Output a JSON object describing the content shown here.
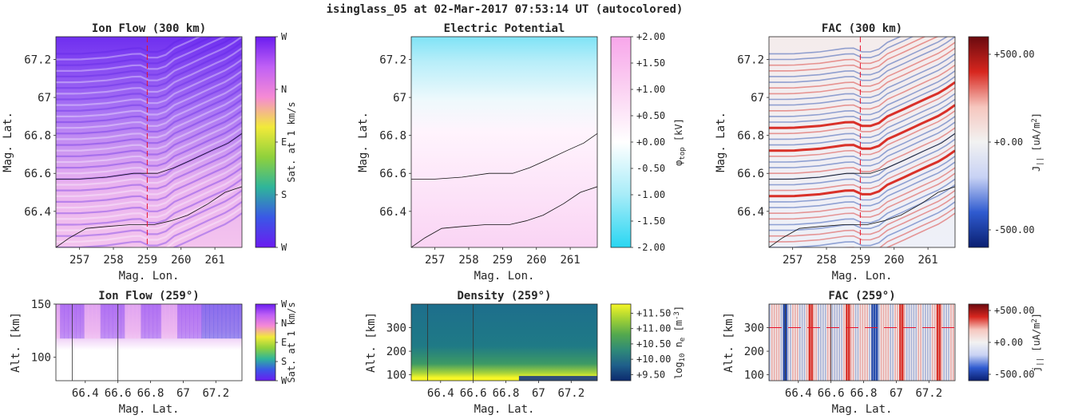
{
  "suptitle": "isinglass_05 at 02-Mar-2017 07:53:14 UT (autocolored)",
  "colors": {
    "red_marker": "#e8102a",
    "ion_low": "#7b2cf5",
    "ion_high": "#f7c0ec",
    "potential_pos": "#f9b7ee",
    "potential_neg": "#29d6f2",
    "fac_pos": "#d7261e",
    "fac_neg": "#1840a8",
    "density_low": "#0c2a6e",
    "density_high": "#f6f626"
  },
  "chart_data": [
    {
      "id": "ion-flow-300",
      "type": "heatmap",
      "title": "Ion Flow (300 km)",
      "xlabel": "Mag. Lon.",
      "ylabel": "Mag. Lat.",
      "xlim": [
        256.3,
        261.8
      ],
      "ylim": [
        66.21,
        67.32
      ],
      "xticks": [
        "257",
        "258",
        "259",
        "260",
        "261"
      ],
      "xtick_values": [
        257,
        258,
        259,
        260,
        261
      ],
      "yticks": [
        "66.4",
        "66.6",
        "66.8",
        "67",
        "67.2"
      ],
      "ytick_values": [
        66.4,
        66.6,
        66.8,
        67.0,
        67.2
      ],
      "show_xlabel": true,
      "colorbar": {
        "label": "Sat. at 1 km/s",
        "ticks": [
          "W",
          "N",
          "E",
          "S",
          "W"
        ],
        "palette": [
          "#6a1cf0",
          "#3a58e6",
          "#2fb59a",
          "#8fd13c",
          "#f2ea3a",
          "#f58ad5",
          "#c060f5",
          "#6a1cf0"
        ]
      },
      "marker_lon": 259,
      "boundary_upper": {
        "x": [
          256.3,
          257.0,
          257.8,
          258.6,
          259.3,
          259.8,
          260.3,
          260.9,
          261.4,
          261.8
        ],
        "y": [
          66.57,
          66.57,
          66.58,
          66.6,
          66.6,
          66.63,
          66.67,
          66.72,
          66.76,
          66.81
        ]
      },
      "boundary_lower": {
        "x": [
          256.3,
          256.7,
          257.2,
          257.8,
          258.5,
          259.2,
          259.7,
          260.2,
          260.8,
          261.3,
          261.8
        ],
        "y": [
          66.21,
          66.26,
          66.31,
          66.32,
          66.33,
          66.33,
          66.35,
          66.38,
          66.44,
          66.5,
          66.53
        ]
      }
    },
    {
      "id": "electric-potential",
      "type": "heatmap",
      "title": "Electric Potential",
      "xlabel": "Mag. Lon.",
      "ylabel": "Mag. Lat.",
      "xlim": [
        256.3,
        261.8
      ],
      "ylim": [
        66.21,
        67.32
      ],
      "xticks": [
        "257",
        "258",
        "259",
        "260",
        "261"
      ],
      "xtick_values": [
        257,
        258,
        259,
        260,
        261
      ],
      "yticks": [
        "66.4",
        "66.6",
        "66.8",
        "67",
        "67.2"
      ],
      "ytick_values": [
        66.4,
        66.6,
        66.8,
        67.0,
        67.2
      ],
      "show_xlabel": true,
      "colorbar": {
        "label": "φtop [kV]",
        "label_main": "φ",
        "label_sub": "top",
        "label_unit": " [kV]",
        "ticks": [
          "+2.00",
          "+1.50",
          "+1.00",
          "+0.50",
          "+0.00",
          "-0.50",
          "-1.00",
          "-1.50",
          "-2.00"
        ],
        "range": [
          -2.0,
          2.0
        ],
        "palette": [
          "#29d6f2",
          "#a7ecf8",
          "#ffffff",
          "#fbd2f2",
          "#f7a6ea"
        ]
      },
      "boundary_upper": {
        "x": [
          256.3,
          257.0,
          257.8,
          258.6,
          259.3,
          259.8,
          260.3,
          260.9,
          261.4,
          261.8
        ],
        "y": [
          66.57,
          66.57,
          66.58,
          66.6,
          66.6,
          66.63,
          66.67,
          66.72,
          66.76,
          66.81
        ]
      },
      "boundary_lower": {
        "x": [
          256.3,
          256.7,
          257.2,
          257.8,
          258.5,
          259.2,
          259.7,
          260.2,
          260.8,
          261.3,
          261.8
        ],
        "y": [
          66.21,
          66.26,
          66.31,
          66.32,
          66.33,
          66.33,
          66.35,
          66.38,
          66.44,
          66.5,
          66.53
        ]
      }
    },
    {
      "id": "fac-300",
      "type": "heatmap",
      "title": "FAC (300 km)",
      "xlabel": "Mag. Lon.",
      "ylabel": "Mag. Lat.",
      "xlim": [
        256.3,
        261.8
      ],
      "ylim": [
        66.21,
        67.32
      ],
      "xticks": [
        "257",
        "258",
        "259",
        "260",
        "261"
      ],
      "xtick_values": [
        257,
        258,
        259,
        260,
        261
      ],
      "yticks": [
        "66.4",
        "66.6",
        "66.8",
        "67",
        "67.2"
      ],
      "ytick_values": [
        66.4,
        66.6,
        66.8,
        67.0,
        67.2
      ],
      "show_xlabel": true,
      "colorbar": {
        "label": "J|| [uA/m2]",
        "label_main": "J",
        "label_sub": "||",
        "label_unit": " [uA/m",
        "label_sup": "2",
        "label_end": "]",
        "ticks": [
          "+500.00",
          "+0.00",
          "-500.00"
        ],
        "range": [
          -600,
          600
        ],
        "palette": [
          "#0a1f70",
          "#2f5bd0",
          "#c8d2f4",
          "#f2f2f2",
          "#f6c6be",
          "#d7261e",
          "#6a0a0f"
        ]
      },
      "marker_lon": 259,
      "boundary_upper": {
        "x": [
          256.3,
          257.0,
          257.8,
          258.6,
          259.3,
          259.8,
          260.3,
          260.9,
          261.4,
          261.8
        ],
        "y": [
          66.57,
          66.57,
          66.58,
          66.6,
          66.6,
          66.63,
          66.67,
          66.72,
          66.76,
          66.81
        ]
      },
      "boundary_lower": {
        "x": [
          256.3,
          256.7,
          257.2,
          257.8,
          258.5,
          259.2,
          259.7,
          260.2,
          260.8,
          261.3,
          261.8
        ],
        "y": [
          66.21,
          66.26,
          66.31,
          66.32,
          66.33,
          66.33,
          66.35,
          66.38,
          66.44,
          66.5,
          66.53
        ]
      }
    },
    {
      "id": "ion-flow-259",
      "type": "heatmap",
      "title": "Ion Flow (259°)",
      "xlabel": "Mag. Lat.",
      "ylabel": "Alt. [km]",
      "xlim": [
        66.22,
        67.36
      ],
      "ylim": [
        78,
        150
      ],
      "xticks": [
        "66.4",
        "66.6",
        "66.8",
        "67",
        "67.2"
      ],
      "xtick_values": [
        66.4,
        66.6,
        66.8,
        67.0,
        67.2
      ],
      "yticks": [
        "100",
        "150"
      ],
      "ytick_values": [
        100,
        150
      ],
      "colorbar": {
        "label": "Sat. at 1 km/s",
        "ticks": [
          "W",
          "N",
          "E",
          "S",
          "W"
        ],
        "palette": [
          "#6a1cf0",
          "#3a58e6",
          "#2fb59a",
          "#8fd13c",
          "#f2ea3a",
          "#f58ad5",
          "#c060f5",
          "#6a1cf0"
        ]
      },
      "vlines_lat": [
        66.32,
        66.6
      ]
    },
    {
      "id": "density-259",
      "type": "heatmap",
      "title": "Density (259°)",
      "xlabel": "Mag. Lat.",
      "ylabel": "Alt. [km]",
      "xlim": [
        66.22,
        67.36
      ],
      "ylim": [
        75,
        400
      ],
      "xticks": [
        "66.4",
        "66.6",
        "66.8",
        "67",
        "67.2"
      ],
      "xtick_values": [
        66.4,
        66.6,
        66.8,
        67.0,
        67.2
      ],
      "yticks": [
        "100",
        "200",
        "300"
      ],
      "ytick_values": [
        100,
        200,
        300
      ],
      "colorbar": {
        "label": "log10 ne [m-3]",
        "label_main": "log",
        "label_sub": "10",
        "label_mid": " n",
        "label_sub2": "e",
        "label_unit": " [m",
        "label_sup": "-3",
        "label_end": "]",
        "ticks": [
          "+11.50",
          "+11.00",
          "+10.50",
          "+10.00",
          "+9.50"
        ],
        "range": [
          9.3,
          11.8
        ],
        "palette": [
          "#0c2a6e",
          "#1f5f8a",
          "#2f8a78",
          "#53a84e",
          "#9fd035",
          "#f6f626"
        ]
      },
      "vlines_lat": [
        66.32,
        66.6
      ]
    },
    {
      "id": "fac-259",
      "type": "heatmap",
      "title": "FAC (259°)",
      "xlabel": "Mag. Lat.",
      "ylabel": "Alt. [km]",
      "xlim": [
        66.22,
        67.36
      ],
      "ylim": [
        75,
        400
      ],
      "xticks": [
        "66.4",
        "66.6",
        "66.8",
        "67",
        "67.2"
      ],
      "xtick_values": [
        66.4,
        66.6,
        66.8,
        67.0,
        67.2
      ],
      "yticks": [
        "100",
        "200",
        "300"
      ],
      "ytick_values": [
        100,
        200,
        300
      ],
      "colorbar": {
        "label": "j|| [uA/m2]",
        "label_main": "j",
        "label_sub": "||",
        "label_unit": " [uA/m",
        "label_sup": "2",
        "label_end": "]",
        "ticks": [
          "+500.00",
          "+0.00",
          "-500.00"
        ],
        "range": [
          -600,
          600
        ],
        "palette": [
          "#0a1f70",
          "#2f5bd0",
          "#c8d2f4",
          "#f2f2f2",
          "#f6c6be",
          "#d7261e",
          "#6a0a0f"
        ]
      },
      "marker_alt": 300,
      "vlines_lat": [
        66.32,
        66.6
      ]
    }
  ]
}
